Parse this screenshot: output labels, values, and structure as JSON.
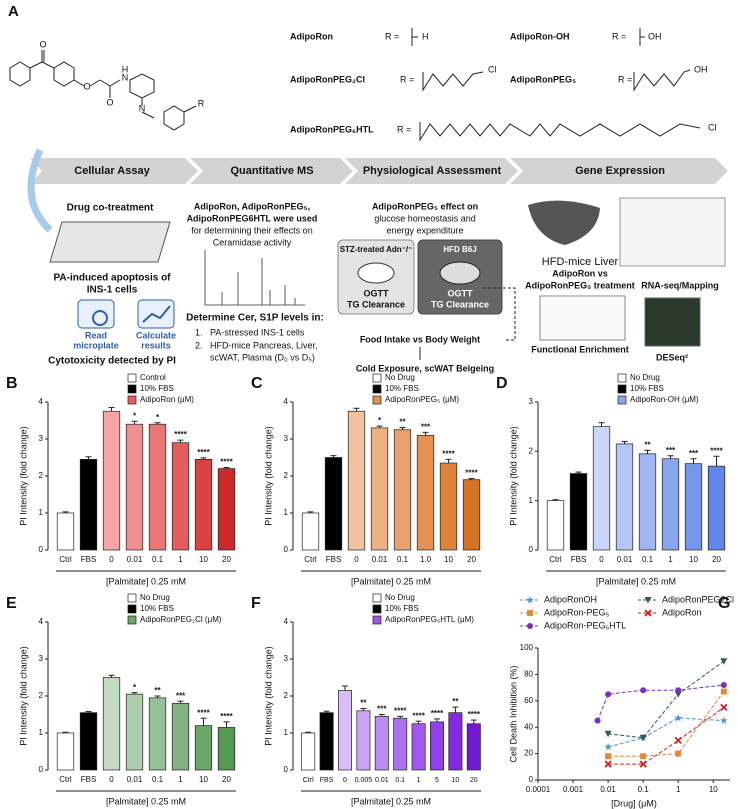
{
  "figure_a": {
    "label": "A",
    "structure_atoms": [
      "O",
      "O",
      "N",
      "H",
      "O",
      "N",
      "R"
    ],
    "compounds": [
      {
        "name": "AdipoRon",
        "r_label": "R =",
        "r_group": "H"
      },
      {
        "name": "AdipoRon-OH",
        "r_label": "R =",
        "r_group": "OH"
      },
      {
        "name": "AdipoRonPEG₂Cl",
        "r_label": "R =",
        "r_group": "Cl"
      },
      {
        "name": "AdipoRonPEG₅",
        "r_label": "R =",
        "r_group": "OH"
      },
      {
        "name": "AdipoRonPEG₆HTL",
        "r_label": "R =",
        "r_group": "Cl"
      }
    ],
    "stages": [
      "Cellular Assay",
      "Quantitative MS",
      "Physiological Assessment",
      "Gene Expression"
    ],
    "cellular_assay": {
      "title": "Drug co-treatment",
      "caption": [
        "PA-induced apoptosis of",
        "INS-1 cells"
      ],
      "icon_1": [
        "Read",
        "microplate"
      ],
      "icon_2": [
        "Calculate",
        "results"
      ],
      "footer": "Cytotoxicity detected by PI"
    },
    "ms": {
      "text": [
        "AdipoRon, AdipoRonPEG₅,",
        "AdipoRonPEG6HTL were used",
        "for determining their effects on",
        "Ceramidase activity"
      ],
      "heading": "Determine Cer, S1P levels in:",
      "items": [
        [
          "1.",
          "PA-stressed INS-1 cells"
        ],
        [
          "2.",
          "HFD-mice Pancreas, Liver,"
        ]
      ],
      "item_cont": "scWAT, Plasma (D₀ vs D₅)"
    },
    "physio": {
      "text": [
        "AdipoRonPEG₅ effect on",
        "glucose homeostasis and",
        "energy expenditure"
      ],
      "box_1": [
        "STZ-treated Adn⁻/⁻",
        "OGTT",
        "TG Clearance"
      ],
      "box_2": [
        "HFD B6J",
        "OGTT",
        "TG Clearance"
      ],
      "food": "Food Intake vs Body Weight",
      "cold": "Cold Exposure, scWAT  Beigeing"
    },
    "gene": {
      "liver": "HFD-mice Liver",
      "compare": [
        "AdipoRon vs",
        "AdipoRonPEG₅ treatment"
      ],
      "rnaseq": "RNA-seq/Mapping",
      "deseq": "DESeq²",
      "enrich": "Functional  Enrichment"
    }
  },
  "chart_data": [
    {
      "type": "bar",
      "label": "B",
      "ylabel": "PI Intensity (fold change)",
      "xlabel": "[Palmitate] 0.25 mM",
      "categories": [
        "Ctrl",
        "FBS",
        "0",
        "0.01",
        "0.1",
        "1",
        "10",
        "20"
      ],
      "values": [
        1.0,
        2.45,
        3.75,
        3.4,
        3.4,
        2.9,
        2.45,
        2.2
      ],
      "errors": [
        0.03,
        0.07,
        0.1,
        0.08,
        0.04,
        0.07,
        0.04,
        0.03
      ],
      "significance": [
        null,
        null,
        null,
        "*",
        "*",
        "****",
        "****",
        "****"
      ],
      "colors": [
        "#ffffff",
        "#000000",
        "#f4a6a6",
        "#ef8f8f",
        "#ea7777",
        "#e35d5d",
        "#db4343",
        "#cf2a2a"
      ],
      "legend": [
        {
          "name": "Control",
          "color": "#ffffff"
        },
        {
          "name": "10% FBS",
          "color": "#000000"
        },
        {
          "name": "AdipoRon (μM)",
          "color": "#e35d5d"
        }
      ],
      "ylim": [
        0,
        4
      ],
      "yticks": [
        0,
        1,
        2,
        3,
        4
      ]
    },
    {
      "type": "bar",
      "label": "C",
      "ylabel": "PI Intensity (fold change)",
      "xlabel": "[Palmitate] 0.25 mM",
      "categories": [
        "Ctrl",
        "FBS",
        "0",
        "0.01",
        "0.1",
        "1.0",
        "10",
        "20"
      ],
      "values": [
        1.0,
        2.5,
        3.75,
        3.3,
        3.25,
        3.1,
        2.35,
        1.9
      ],
      "errors": [
        0.03,
        0.05,
        0.08,
        0.05,
        0.06,
        0.08,
        0.1,
        0.03
      ],
      "significance": [
        null,
        null,
        null,
        "*",
        "**",
        "***",
        "****",
        "****"
      ],
      "colors": [
        "#ffffff",
        "#000000",
        "#f1c29c",
        "#edb283",
        "#e9a26b",
        "#e49253",
        "#de823b",
        "#d67224"
      ],
      "legend": [
        {
          "name": "No Drug",
          "color": "#ffffff"
        },
        {
          "name": "10% FBS",
          "color": "#000000"
        },
        {
          "name": "AdipoRonPEG₅ (μM)",
          "color": "#e49253"
        }
      ],
      "ylim": [
        0,
        4
      ],
      "yticks": [
        0,
        1,
        2,
        3,
        4
      ]
    },
    {
      "type": "bar",
      "label": "D",
      "ylabel": "PI Intensity (fold change)",
      "xlabel": "[Palmitate] 0.25 mM",
      "categories": [
        "Ctrl",
        "FBS",
        "0",
        "0.01",
        "0.1",
        "1",
        "10",
        "20"
      ],
      "values": [
        1.0,
        1.55,
        2.5,
        2.15,
        1.95,
        1.85,
        1.75,
        1.7
      ],
      "errors": [
        0.02,
        0.03,
        0.08,
        0.05,
        0.07,
        0.06,
        0.1,
        0.2
      ],
      "significance": [
        null,
        null,
        null,
        null,
        "**",
        "***",
        "***",
        "****"
      ],
      "colors": [
        "#ffffff",
        "#000000",
        "#c9d6f9",
        "#b4c6f6",
        "#9fb6f3",
        "#8aa6f0",
        "#7596ed",
        "#6086ea"
      ],
      "legend": [
        {
          "name": "No Drug",
          "color": "#ffffff"
        },
        {
          "name": "10% FBS",
          "color": "#000000"
        },
        {
          "name": "AdipoRon-OH (μM)",
          "color": "#8aa6f0"
        }
      ],
      "ylim": [
        0,
        3
      ],
      "yticks": [
        0,
        1,
        2,
        3
      ]
    },
    {
      "type": "bar",
      "label": "E",
      "ylabel": "PI Intensity (fold change)",
      "xlabel": "[Palmitate] 0.25 mM",
      "categories": [
        "Ctrl",
        "FBS",
        "0",
        "0.01",
        "0.1",
        "1",
        "10",
        "20"
      ],
      "values": [
        1.0,
        1.55,
        2.5,
        2.05,
        1.95,
        1.8,
        1.2,
        1.15
      ],
      "errors": [
        0.02,
        0.03,
        0.06,
        0.04,
        0.05,
        0.06,
        0.2,
        0.15
      ],
      "significance": [
        null,
        null,
        null,
        "*",
        "**",
        "***",
        "****",
        "****"
      ],
      "colors": [
        "#ffffff",
        "#000000",
        "#c2dcc2",
        "#acceac",
        "#96c096",
        "#80b380",
        "#6aa66a",
        "#549954"
      ],
      "legend": [
        {
          "name": "No Drug",
          "color": "#ffffff"
        },
        {
          "name": "10% FBS",
          "color": "#000000"
        },
        {
          "name": "AdipoRonPEG₂Cl (μM)",
          "color": "#6aa66a"
        }
      ],
      "ylim": [
        0,
        4
      ],
      "yticks": [
        0,
        1,
        2,
        3,
        4
      ]
    },
    {
      "type": "bar",
      "label": "F",
      "ylabel": "PI Intensity (fold change)",
      "xlabel": "[Palmitate] 0.25 mM",
      "categories": [
        "Ctrl",
        "FBS",
        "0",
        "0.005",
        "0.01",
        "0.1",
        "1",
        "5",
        "10",
        "20"
      ],
      "values": [
        1.0,
        1.55,
        2.15,
        1.6,
        1.45,
        1.4,
        1.25,
        1.3,
        1.55,
        1.25
      ],
      "errors": [
        0.02,
        0.04,
        0.12,
        0.06,
        0.05,
        0.05,
        0.07,
        0.08,
        0.15,
        0.1
      ],
      "significance": [
        null,
        null,
        null,
        "**",
        "***",
        "****",
        "****",
        "****",
        "**",
        "****"
      ],
      "colors": [
        "#ffffff",
        "#000000",
        "#dbbcf8",
        "#cca3f5",
        "#bd8af2",
        "#ae71ef",
        "#a058ec",
        "#9240e9",
        "#842ae3",
        "#7518d6"
      ],
      "legend": [
        {
          "name": "No Drug",
          "color": "#ffffff"
        },
        {
          "name": "10% FBS",
          "color": "#000000"
        },
        {
          "name": "AdipoRonPEG₆HTL (μM)",
          "color": "#a058ec"
        }
      ],
      "ylim": [
        0,
        4
      ],
      "yticks": [
        0,
        1,
        2,
        3,
        4
      ]
    },
    {
      "type": "scatter",
      "label": "G",
      "ylabel": "Cell Death Inhibition (%)",
      "xlabel": "[Drug] (μM)",
      "log_x": true,
      "series": [
        {
          "name": "AdipoRonOH",
          "color": "#4a90e2",
          "marker": "star",
          "x": [
            0.01,
            0.1,
            1,
            20
          ],
          "values": [
            25,
            32,
            47,
            45
          ]
        },
        {
          "name": "AdipoRonPEG2Cl",
          "color": "#2f5f4f",
          "marker": "triangle",
          "x": [
            0.01,
            0.1,
            1,
            20
          ],
          "values": [
            35,
            32,
            65,
            90
          ]
        },
        {
          "name": "AdipoRon-PEG₅",
          "color": "#e08a3c",
          "marker": "square",
          "x": [
            0.01,
            0.1,
            1,
            20
          ],
          "values": [
            18,
            18,
            20,
            67
          ]
        },
        {
          "name": "AdipoRon",
          "color": "#cc2222",
          "marker": "x",
          "x": [
            0.01,
            0.1,
            1,
            20
          ],
          "values": [
            12,
            12,
            30,
            55
          ]
        },
        {
          "name": "AdipoRon-PEG₆HTL",
          "color": "#7b2fbf",
          "marker": "circle",
          "x": [
            0.005,
            0.01,
            0.1,
            1,
            20
          ],
          "values": [
            45,
            65,
            68,
            68,
            72
          ]
        }
      ],
      "xlim": [
        0.0001,
        30
      ],
      "xticks": [
        0.0001,
        0.001,
        0.01,
        0.1,
        1,
        10
      ],
      "ylim": [
        0,
        100
      ],
      "yticks": [
        0,
        20,
        40,
        60,
        80,
        100
      ]
    }
  ]
}
